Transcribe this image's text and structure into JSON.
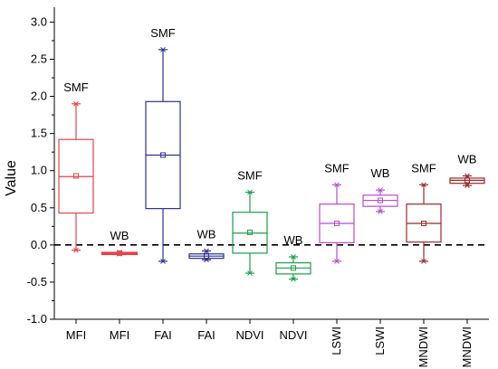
{
  "chart_data": {
    "type": "boxplot",
    "title": "",
    "xlabel": "",
    "ylabel": "Value",
    "ylim": [
      -1.0,
      3.2
    ],
    "yticks": [
      "-1.0",
      "-0.5",
      "0.0",
      "0.5",
      "1.0",
      "1.5",
      "2.0",
      "2.5",
      "3.0"
    ],
    "reference_line": {
      "y": 0.0,
      "style": "dashed",
      "color": "#000000"
    },
    "boxes": [
      {
        "category": "MFI",
        "label": "SMF",
        "color": "#e8434a",
        "min": -0.07,
        "q1": 0.43,
        "median": 0.92,
        "mean": 0.93,
        "q3": 1.42,
        "max": 1.9
      },
      {
        "category": "MFI",
        "label": "WB",
        "color": "#e8434a",
        "min": -0.12,
        "q1": -0.115,
        "median": -0.11,
        "mean": -0.11,
        "q3": -0.105,
        "max": -0.1
      },
      {
        "category": "FAI",
        "label": "SMF",
        "color": "#2e3192",
        "min": -0.22,
        "q1": 0.49,
        "median": 1.21,
        "mean": 1.21,
        "q3": 1.93,
        "max": 2.63
      },
      {
        "category": "FAI",
        "label": "WB",
        "color": "#2e3192",
        "min": -0.2,
        "q1": -0.18,
        "median": -0.15,
        "mean": -0.15,
        "q3": -0.12,
        "max": -0.08
      },
      {
        "category": "NDVI",
        "label": "SMF",
        "color": "#1a9e4b",
        "min": -0.38,
        "q1": -0.11,
        "median": 0.16,
        "mean": 0.17,
        "q3": 0.44,
        "max": 0.71
      },
      {
        "category": "NDVI",
        "label": "WB",
        "color": "#1a9e4b",
        "min": -0.46,
        "q1": -0.39,
        "median": -0.31,
        "mean": -0.31,
        "q3": -0.24,
        "max": -0.16
      },
      {
        "category": "LSWI",
        "label": "SMF",
        "color": "#b84bd6",
        "min": -0.22,
        "q1": 0.03,
        "median": 0.29,
        "mean": 0.29,
        "q3": 0.55,
        "max": 0.81
      },
      {
        "category": "LSWI",
        "label": "WB",
        "color": "#b84bd6",
        "min": 0.45,
        "q1": 0.52,
        "median": 0.6,
        "mean": 0.6,
        "q3": 0.67,
        "max": 0.74
      },
      {
        "category": "MNDWI",
        "label": "SMF",
        "color": "#9b2a2a",
        "min": -0.22,
        "q1": 0.04,
        "median": 0.29,
        "mean": 0.29,
        "q3": 0.55,
        "max": 0.81
      },
      {
        "category": "MNDWI",
        "label": "WB",
        "color": "#9b2a2a",
        "min": 0.8,
        "q1": 0.83,
        "median": 0.87,
        "mean": 0.87,
        "q3": 0.9,
        "max": 0.93
      }
    ]
  }
}
